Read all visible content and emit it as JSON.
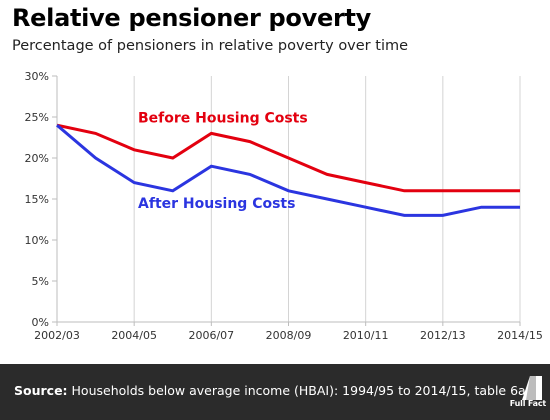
{
  "header": {
    "title": "Relative pensioner poverty",
    "subtitle": "Percentage of pensioners in relative poverty over time"
  },
  "footer": {
    "source_label": "Source:",
    "source_text": "Households below average income (HBAI): 1994/95 to 2014/15, table 6a",
    "logo_text": "Full Fact"
  },
  "chart_data": {
    "type": "line",
    "title": "Relative pensioner poverty",
    "subtitle": "Percentage of pensioners in relative poverty over time",
    "x": [
      0,
      1,
      2,
      3,
      4,
      5,
      6,
      7,
      8,
      9,
      10,
      11,
      12
    ],
    "x_tick_labels": [
      "2002/03",
      "2004/05",
      "2006/07",
      "2008/09",
      "2010/11",
      "2012/13",
      "2014/15"
    ],
    "x_tick_positions": [
      0,
      2,
      4,
      6,
      8,
      10,
      12
    ],
    "y_tick_labels": [
      "0%",
      "5%",
      "10%",
      "15%",
      "20%",
      "25%",
      "30%"
    ],
    "ylim": [
      0,
      30
    ],
    "y_ticks": [
      0,
      5,
      10,
      15,
      20,
      25,
      30
    ],
    "grid": "vertical",
    "series": [
      {
        "name": "Before Housing Costs",
        "color": "#e3000f",
        "values": [
          24,
          23,
          21,
          20,
          23,
          22,
          20,
          18,
          17,
          16,
          16,
          16,
          16
        ]
      },
      {
        "name": "After Housing Costs",
        "color": "#2b35e0",
        "values": [
          24,
          20,
          17,
          16,
          19,
          18,
          16,
          15,
          14,
          13,
          13,
          14,
          14
        ]
      }
    ]
  }
}
